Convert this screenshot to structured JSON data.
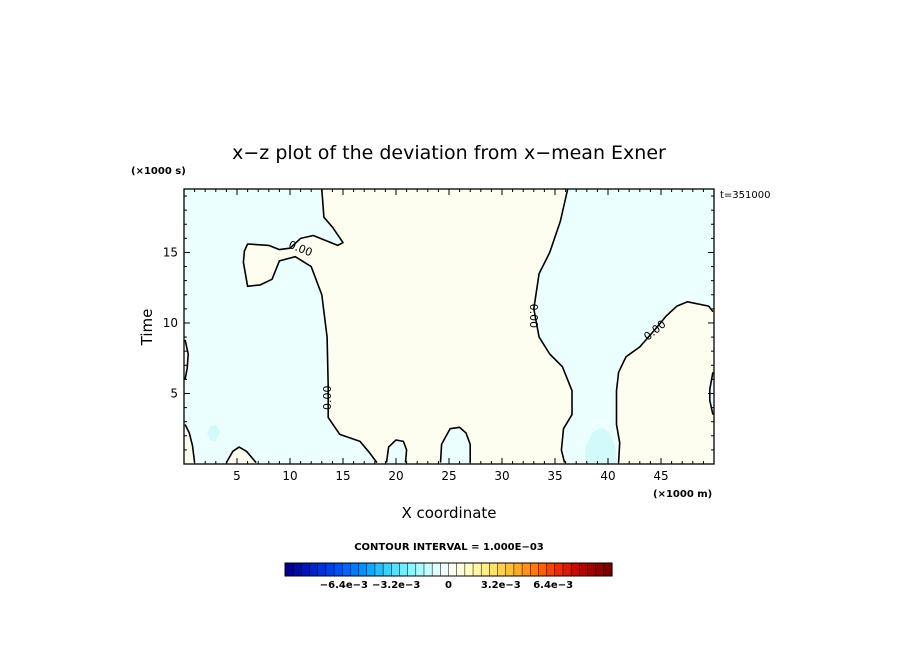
{
  "chart_data": {
    "type": "contour",
    "title": "x−z plot of the deviation from x−mean Exner",
    "xlabel": "X coordinate",
    "ylabel": "Time",
    "x_unit": "(×1000 m)",
    "y_unit": "(×1000 s)",
    "time_label": "t=351000",
    "xlim": [
      0,
      50
    ],
    "ylim": [
      0,
      19.5
    ],
    "x_ticks": [
      5,
      10,
      15,
      20,
      25,
      30,
      35,
      40,
      45
    ],
    "y_ticks": [
      5,
      10,
      15
    ],
    "contour_interval_label": "CONTOUR INTERVAL = 1.000E−03",
    "contour_labels": [
      {
        "text": "0.00",
        "x": 11.0,
        "y": 15.3,
        "angle": 22
      },
      {
        "text": "0.00",
        "x": 13.5,
        "y": 4.7,
        "angle": -90
      },
      {
        "text": "0.00",
        "x": 33.0,
        "y": 10.5,
        "angle": 90
      },
      {
        "text": "0.00",
        "x": 44.4,
        "y": 9.5,
        "angle": -40
      }
    ],
    "zero_contour": [
      [
        [
          13.0,
          19.5
        ],
        [
          13.2,
          17.5
        ],
        [
          14.0,
          16.8
        ],
        [
          15.0,
          15.7
        ],
        [
          14.5,
          15.5
        ],
        [
          12.2,
          16.2
        ],
        [
          11.0,
          16.0
        ],
        [
          10.0,
          15.3
        ],
        [
          9.0,
          15.2
        ],
        [
          8.0,
          15.5
        ],
        [
          6.0,
          15.6
        ],
        [
          5.7,
          15.1
        ],
        [
          5.6,
          14.3
        ],
        [
          6.0,
          12.6
        ],
        [
          7.2,
          12.7
        ],
        [
          8.3,
          13.1
        ],
        [
          9.0,
          14.4
        ],
        [
          10.5,
          14.7
        ],
        [
          12.0,
          14.0
        ],
        [
          13.0,
          12.0
        ],
        [
          13.5,
          9.0
        ],
        [
          13.6,
          5.5
        ],
        [
          13.6,
          3.3
        ],
        [
          14.7,
          2.1
        ],
        [
          16.6,
          1.6
        ],
        [
          17.5,
          0.8
        ],
        [
          18.2,
          0.1
        ]
      ],
      [
        [
          19.1,
          0.1
        ],
        [
          19.3,
          1.2
        ],
        [
          20.0,
          1.7
        ],
        [
          20.7,
          1.6
        ],
        [
          21.0,
          1.0
        ],
        [
          20.9,
          0.1
        ]
      ],
      [
        [
          24.2,
          0.1
        ],
        [
          24.3,
          1.4
        ],
        [
          25.1,
          2.5
        ],
        [
          26.0,
          2.6
        ],
        [
          26.6,
          2.2
        ],
        [
          27.0,
          1.4
        ],
        [
          27.0,
          0.1
        ]
      ],
      [
        [
          36.2,
          19.5
        ],
        [
          35.5,
          17.2
        ],
        [
          34.5,
          15.0
        ],
        [
          33.5,
          13.5
        ],
        [
          33.0,
          11.0
        ],
        [
          33.5,
          9.0
        ],
        [
          34.5,
          7.8
        ],
        [
          35.7,
          6.9
        ],
        [
          36.6,
          5.2
        ],
        [
          36.6,
          3.5
        ],
        [
          35.8,
          2.5
        ],
        [
          35.6,
          1.0
        ],
        [
          35.9,
          0.1
        ]
      ],
      [
        [
          41.0,
          0.1
        ],
        [
          41.1,
          1.5
        ],
        [
          40.8,
          2.8
        ],
        [
          40.8,
          5.2
        ],
        [
          41.0,
          6.5
        ],
        [
          41.7,
          7.6
        ],
        [
          43.0,
          8.3
        ],
        [
          44.4,
          9.5
        ],
        [
          45.5,
          10.5
        ],
        [
          46.5,
          11.2
        ],
        [
          47.5,
          11.5
        ],
        [
          49.5,
          11.2
        ],
        [
          49.9,
          10.8
        ]
      ],
      [
        [
          0.1,
          8.8
        ],
        [
          0.4,
          7.8
        ],
        [
          0.3,
          6.8
        ],
        [
          0.1,
          6.0
        ]
      ],
      [
        [
          0.1,
          2.8
        ],
        [
          0.5,
          2.2
        ],
        [
          0.8,
          1.3
        ],
        [
          1.0,
          0.1
        ]
      ],
      [
        [
          4.0,
          0.1
        ],
        [
          4.6,
          0.9
        ],
        [
          5.2,
          1.2
        ],
        [
          5.9,
          0.9
        ],
        [
          6.8,
          0.1
        ]
      ],
      [
        [
          49.9,
          3.5
        ],
        [
          49.6,
          4.5
        ],
        [
          49.6,
          5.3
        ],
        [
          49.9,
          6.5
        ]
      ]
    ],
    "regions": [
      {
        "label": "-",
        "color": "#eafffe",
        "polygon": [
          [
            0,
            0
          ],
          [
            0,
            19.5
          ],
          [
            13.0,
            19.5
          ],
          [
            13.2,
            17.5
          ],
          [
            14.0,
            16.8
          ],
          [
            15.0,
            15.7
          ],
          [
            14.5,
            15.5
          ],
          [
            12.2,
            16.2
          ],
          [
            11.0,
            16.0
          ],
          [
            10.0,
            15.3
          ],
          [
            9.0,
            15.2
          ],
          [
            8.0,
            15.5
          ],
          [
            6.0,
            15.6
          ],
          [
            5.7,
            15.1
          ],
          [
            5.6,
            14.3
          ],
          [
            6.0,
            12.6
          ],
          [
            7.2,
            12.7
          ],
          [
            8.3,
            13.1
          ],
          [
            9.0,
            14.4
          ],
          [
            10.5,
            14.7
          ],
          [
            12.0,
            14.0
          ],
          [
            13.0,
            12.0
          ],
          [
            13.5,
            9.0
          ],
          [
            13.6,
            5.5
          ],
          [
            13.6,
            3.3
          ],
          [
            14.7,
            2.1
          ],
          [
            16.6,
            1.6
          ],
          [
            17.5,
            0.8
          ],
          [
            18.2,
            0
          ]
        ]
      },
      {
        "label": "-",
        "color": "#eafffe",
        "polygon": [
          [
            36.2,
            19.5
          ],
          [
            35.5,
            17.2
          ],
          [
            34.5,
            15.0
          ],
          [
            33.5,
            13.5
          ],
          [
            33.0,
            11.0
          ],
          [
            33.5,
            9.0
          ],
          [
            34.5,
            7.8
          ],
          [
            35.7,
            6.9
          ],
          [
            36.6,
            5.2
          ],
          [
            36.6,
            3.5
          ],
          [
            35.8,
            2.5
          ],
          [
            35.6,
            1.0
          ],
          [
            35.9,
            0
          ],
          [
            41.0,
            0
          ],
          [
            41.1,
            1.5
          ],
          [
            40.8,
            2.8
          ],
          [
            40.8,
            5.2
          ],
          [
            41.0,
            6.5
          ],
          [
            41.7,
            7.6
          ],
          [
            43.0,
            8.3
          ],
          [
            44.4,
            9.5
          ],
          [
            45.5,
            10.5
          ],
          [
            46.5,
            11.2
          ],
          [
            47.5,
            11.5
          ],
          [
            49.5,
            11.2
          ],
          [
            50,
            10.8
          ],
          [
            50,
            19.5
          ]
        ]
      },
      {
        "label": "+",
        "color": "#fefef0",
        "polygon": [
          [
            0,
            0
          ],
          [
            1.0,
            0
          ],
          [
            0.8,
            1.3
          ],
          [
            0.5,
            2.2
          ],
          [
            0,
            2.8
          ]
        ]
      },
      {
        "label": "+",
        "color": "#fefef0",
        "polygon": [
          [
            0,
            6.0
          ],
          [
            0.3,
            6.8
          ],
          [
            0.4,
            7.8
          ],
          [
            0,
            8.8
          ]
        ]
      },
      {
        "label": "+",
        "color": "#fefef0",
        "polygon": [
          [
            4.0,
            0
          ],
          [
            4.6,
            0.9
          ],
          [
            5.2,
            1.2
          ],
          [
            5.9,
            0.9
          ],
          [
            6.8,
            0
          ]
        ]
      },
      {
        "label": "-",
        "color": "#eafffe",
        "polygon": [
          [
            19.1,
            0
          ],
          [
            19.3,
            1.2
          ],
          [
            20.0,
            1.7
          ],
          [
            20.7,
            1.6
          ],
          [
            21.0,
            1.0
          ],
          [
            20.9,
            0
          ]
        ]
      },
      {
        "label": "-",
        "color": "#eafffe",
        "polygon": [
          [
            24.2,
            0
          ],
          [
            24.3,
            1.4
          ],
          [
            25.1,
            2.5
          ],
          [
            26.0,
            2.6
          ],
          [
            26.6,
            2.2
          ],
          [
            27.0,
            1.4
          ],
          [
            27.0,
            0
          ]
        ]
      },
      {
        "label": "-",
        "color": "#eafffe",
        "polygon": [
          [
            50,
            3.5
          ],
          [
            49.6,
            4.5
          ],
          [
            49.6,
            5.3
          ],
          [
            50,
            6.5
          ]
        ]
      },
      {
        "label": "-1e-3",
        "color": "#d2fafa",
        "polygon": [
          [
            2.4,
            2.6
          ],
          [
            3.0,
            2.8
          ],
          [
            3.4,
            2.3
          ],
          [
            3.0,
            1.6
          ],
          [
            2.4,
            1.7
          ],
          [
            2.2,
            2.2
          ]
        ]
      },
      {
        "label": "-1e-3",
        "color": "#d2fafa",
        "polygon": [
          [
            37.8,
            0
          ],
          [
            37.9,
            1.2
          ],
          [
            38.5,
            2.2
          ],
          [
            39.4,
            2.6
          ],
          [
            40.2,
            2.2
          ],
          [
            40.7,
            1.2
          ],
          [
            40.8,
            0
          ]
        ]
      }
    ],
    "colorbar": {
      "labels": [
        "−6.4e−3",
        "−3.2e−3",
        "0",
        "3.2e−3",
        "6.4e−3"
      ],
      "label_values": [
        -6.4,
        -3.2,
        0,
        3.2,
        6.4
      ],
      "vmin": -10,
      "vmax": 10,
      "n_bins": 40,
      "colors": [
        "#00008f",
        "#000aa6",
        "#0016bc",
        "#0022cf",
        "#0030df",
        "#0040ec",
        "#0052f5",
        "#0066fc",
        "#007cff",
        "#0092ff",
        "#10a8ff",
        "#22beff",
        "#38d2ff",
        "#52e2ff",
        "#6cf0ff",
        "#88f8ff",
        "#a8fcff",
        "#c6feff",
        "#defffe",
        "#f0fffe",
        "#fffff2",
        "#ffffdc",
        "#fffcc4",
        "#fff6a4",
        "#ffee84",
        "#ffe266",
        "#ffd24c",
        "#ffc036",
        "#ffaa24",
        "#ff9216",
        "#ff780c",
        "#ff5e06",
        "#f84402",
        "#ec2c00",
        "#de1800",
        "#cc0800",
        "#b80000",
        "#a40000",
        "#900000",
        "#7c0000"
      ]
    }
  }
}
